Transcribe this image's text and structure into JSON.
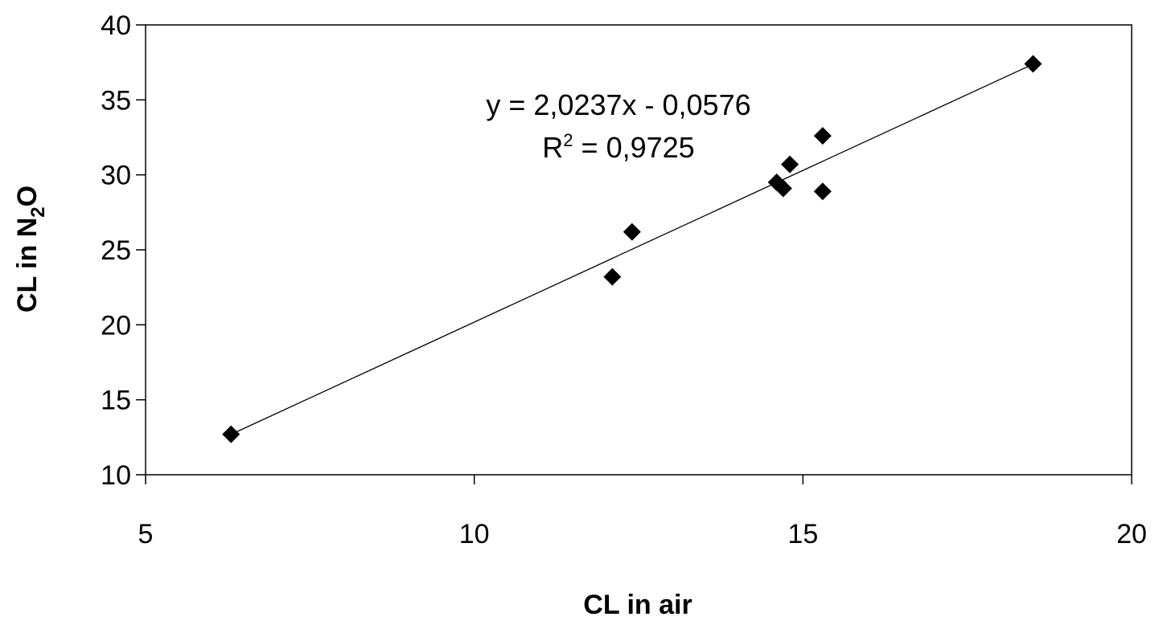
{
  "chart_data": {
    "type": "scatter",
    "title": "",
    "xlabel": "CL  in air",
    "ylabel": {
      "prefix": "CL  in N",
      "subscript": "2",
      "suffix": "O"
    },
    "xlim": [
      5,
      20
    ],
    "ylim": [
      10,
      40
    ],
    "x_ticks": [
      5,
      10,
      15,
      20
    ],
    "y_ticks": [
      10,
      15,
      20,
      25,
      30,
      35,
      40
    ],
    "grid": false,
    "legend": "none",
    "marker": "diamond",
    "marker_color": "#000000",
    "series": [
      {
        "x": [
          6.3,
          12.1,
          12.4,
          14.6,
          14.7,
          14.8,
          15.3,
          15.3,
          18.5
        ],
        "y": [
          12.7,
          23.2,
          26.2,
          29.5,
          29.1,
          30.7,
          32.6,
          28.9,
          37.4
        ]
      }
    ],
    "trendline": {
      "slope": 2.0237,
      "intercept": -0.0576,
      "x_range": [
        6.3,
        18.5
      ],
      "equation_label": "y = 2,0237x - 0,0576",
      "r2_label": {
        "prefix": "R",
        "superscript": "2",
        "suffix": " = 0,9725"
      }
    }
  }
}
